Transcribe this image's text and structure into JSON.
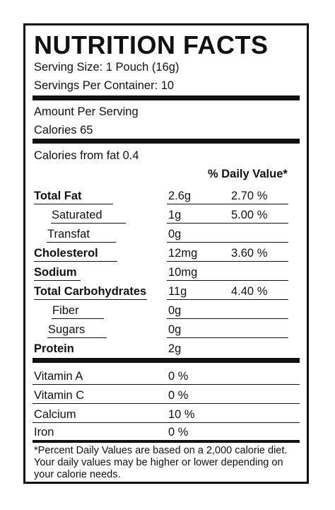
{
  "title": "NUTRITION FACTS",
  "serving_size": "Serving Size: 1 Pouch (16g)",
  "servings_per_container": "Servings Per Container: 10",
  "amount_per_serving": "Amount Per Serving",
  "calories": "Calories  65",
  "calories_from_fat": "Calories from fat 0.4",
  "daily_value_header": "% Daily Value*",
  "nutrients": [
    {
      "name": "Total Fat",
      "amount": "2.6g",
      "dv": "2.70 %"
    },
    {
      "name": "Saturated",
      "amount": "1g",
      "dv": "5.00 %"
    },
    {
      "name": "Transfat",
      "amount": "0g",
      "dv": ""
    },
    {
      "name": "Cholesterol",
      "amount": "12mg",
      "dv": "3.60 %"
    },
    {
      "name": "Sodium",
      "amount": "10mg",
      "dv": ""
    },
    {
      "name": "Total Carbohydrates",
      "amount": "11g",
      "dv": "4.40 %"
    },
    {
      "name": "Fiber",
      "amount": "0g",
      "dv": ""
    },
    {
      "name": "Sugars",
      "amount": "0g",
      "dv": ""
    },
    {
      "name": "Protein",
      "amount": "2g",
      "dv": ""
    }
  ],
  "vitamins": [
    {
      "name": "Vitamin A",
      "value": "0 %"
    },
    {
      "name": "Vitamin C",
      "value": "0 %"
    },
    {
      "name": "Calcium",
      "value": "10 %"
    },
    {
      "name": "Iron",
      "value": " 0 %"
    }
  ],
  "footnote": "*Percent Daily Values are based on a 2,000 calorie diet. Your daily values may be higher or lower depending on your calorie needs."
}
